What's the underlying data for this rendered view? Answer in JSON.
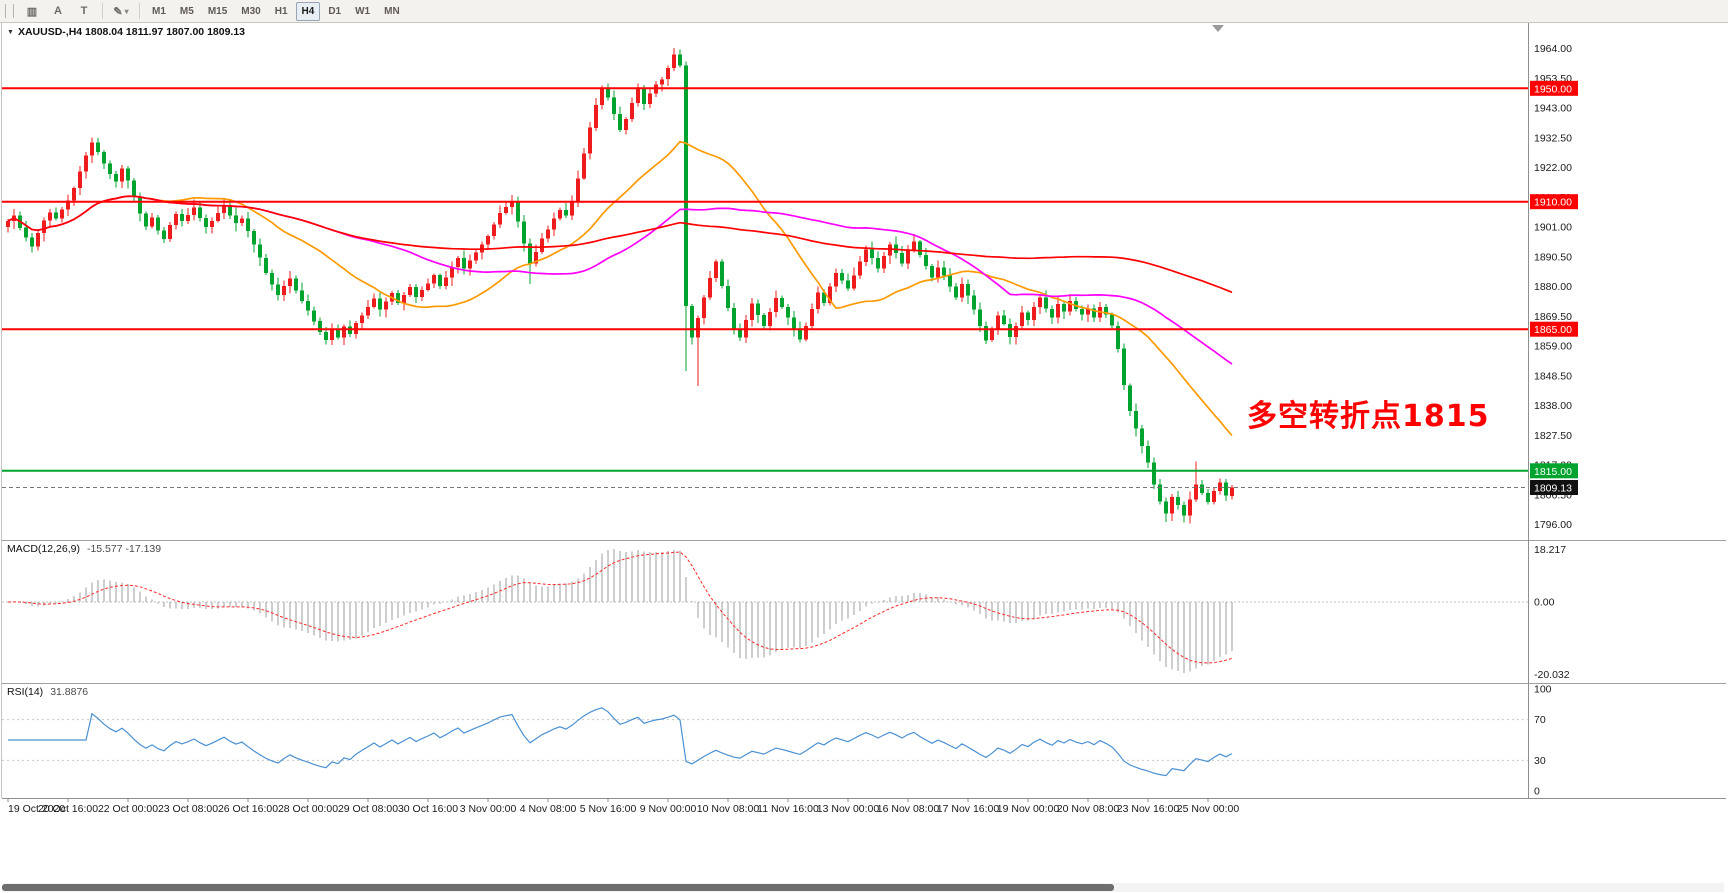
{
  "toolbar": {
    "left_buttons": [
      {
        "name": "chart-window-icon",
        "glyph": "▥"
      },
      {
        "name": "cursor-a-button",
        "glyph": "A"
      },
      {
        "name": "text-tool-button",
        "glyph": "T"
      }
    ],
    "objects_button": {
      "name": "draw-objects-button",
      "glyph": "✎",
      "caret": "▾"
    },
    "timeframes": [
      {
        "label": "M1",
        "active": false
      },
      {
        "label": "M5",
        "active": false
      },
      {
        "label": "M15",
        "active": false
      },
      {
        "label": "M30",
        "active": false
      },
      {
        "label": "H1",
        "active": false
      },
      {
        "label": "H4",
        "active": true
      },
      {
        "label": "D1",
        "active": false
      },
      {
        "label": "W1",
        "active": false
      },
      {
        "label": "MN",
        "active": false
      }
    ]
  },
  "chart": {
    "symbol_line": "XAUUSD-,H4  1808.04 1811.97 1807.00 1809.13",
    "menu_arrow": "▼",
    "annotation": {
      "text": "多空转折点1815",
      "color": "#ff0000"
    },
    "colors": {
      "up": "#ee1c1c",
      "down": "#00a32e",
      "hline_red": "#ff0000",
      "hline_green": "#00a32e",
      "rsi": "#4a90d2",
      "macd_hist": "#9c9c9c",
      "macd_signal": "#ff2a2a"
    },
    "view": {
      "price_min": 1792.0,
      "price_max": 1972.0
    },
    "price_axis": {
      "ticks": [
        1964.0,
        1953.5,
        1943.0,
        1932.5,
        1922.0,
        1911.5,
        1901.0,
        1890.5,
        1880.0,
        1869.5,
        1859.0,
        1848.5,
        1838.0,
        1827.5,
        1817.0,
        1806.5,
        1796.0
      ]
    },
    "hlines": [
      {
        "price": 1950.0,
        "label": "1950.00",
        "color": "#ff0000"
      },
      {
        "price": 1910.0,
        "label": "1910.00",
        "color": "#ff0000"
      },
      {
        "price": 1865.0,
        "label": "1865.00",
        "color": "#ff0000"
      },
      {
        "price": 1815.0,
        "label": "1815.00",
        "color": "#00a32e"
      }
    ],
    "current_price": {
      "value": 1809.13,
      "label": "1809.13"
    }
  },
  "chart_data": {
    "type": "candlestick",
    "symbol": "XAUUSD-",
    "timeframe": "H4",
    "first_open": 1901.0,
    "closes": [
      1903.2,
      1905.1,
      1900.8,
      1897.4,
      1894.2,
      1898.9,
      1903.3,
      1906.1,
      1904.0,
      1907.2,
      1910.4,
      1914.8,
      1920.6,
      1926.3,
      1930.9,
      1927.6,
      1923.4,
      1919.8,
      1917.2,
      1921.7,
      1917.5,
      1911.6,
      1905.8,
      1901.2,
      1904.4,
      1899.8,
      1896.9,
      1901.8,
      1905.7,
      1903.1,
      1905.3,
      1908.0,
      1904.2,
      1901.0,
      1903.2,
      1906.0,
      1908.8,
      1905.2,
      1902.4,
      1904.1,
      1899.6,
      1894.8,
      1890.2,
      1884.9,
      1880.8,
      1877.0,
      1880.2,
      1882.9,
      1878.6,
      1874.9,
      1871.6,
      1867.8,
      1864.0,
      1861.2,
      1864.9,
      1862.1,
      1866.0,
      1863.3,
      1867.1,
      1869.9,
      1872.8,
      1875.9,
      1871.9,
      1874.8,
      1877.8,
      1874.2,
      1877.0,
      1879.9,
      1876.3,
      1878.9,
      1881.2,
      1884.1,
      1880.3,
      1883.2,
      1886.9,
      1890.1,
      1886.4,
      1889.2,
      1892.0,
      1894.8,
      1897.8,
      1901.9,
      1906.0,
      1908.2,
      1910.1,
      1903.0,
      1895.2,
      1888.1,
      1892.3,
      1897.0,
      1900.2,
      1904.1,
      1907.0,
      1905.1,
      1910.3,
      1918.2,
      1927.0,
      1936.1,
      1944.2,
      1950.1,
      1946.8,
      1941.0,
      1935.2,
      1939.1,
      1944.9,
      1950.2,
      1944.4,
      1948.2,
      1951.3,
      1953.2,
      1957.1,
      1961.9,
      1958.0,
      1873.2,
      1862.1,
      1869.0,
      1876.2,
      1883.1,
      1888.9,
      1880.2,
      1872.4,
      1865.3,
      1862.1,
      1868.2,
      1874.1,
      1870.0,
      1866.2,
      1871.1,
      1876.0,
      1872.9,
      1869.2,
      1865.1,
      1861.3,
      1866.2,
      1872.1,
      1877.9,
      1874.2,
      1880.1,
      1884.9,
      1882.2,
      1879.3,
      1883.9,
      1888.8,
      1893.1,
      1890.2,
      1886.4,
      1890.9,
      1894.8,
      1891.9,
      1888.2,
      1892.8,
      1895.9,
      1891.2,
      1887.3,
      1883.2,
      1886.8,
      1883.9,
      1880.1,
      1876.2,
      1880.9,
      1876.8,
      1871.9,
      1866.2,
      1861.1,
      1864.9,
      1869.8,
      1866.9,
      1862.2,
      1866.1,
      1870.9,
      1868.2,
      1872.9,
      1876.1,
      1872.2,
      1869.1,
      1873.9,
      1871.2,
      1874.9,
      1872.1,
      1870.2,
      1872.3,
      1869.1,
      1872.9,
      1870.1,
      1866.2,
      1858.1,
      1845.2,
      1836.1,
      1829.9,
      1823.8,
      1817.9,
      1810.2,
      1804.1,
      1799.9,
      1805.8,
      1802.9,
      1799.2,
      1804.9,
      1810.1,
      1807.2,
      1803.9,
      1807.8,
      1810.9,
      1806.2,
      1809.13
    ],
    "wick_overrides": {
      "14": [
        1932.6,
        null
      ],
      "53": [
        null,
        1859.6
      ],
      "84": [
        1912.4,
        null
      ],
      "87": [
        null,
        1880.9
      ],
      "111": [
        1964.3,
        null
      ],
      "113": [
        1959.5,
        1850.2
      ],
      "115": [
        null,
        1845.0
      ],
      "193": [
        null,
        1797.0
      ],
      "196": [
        null,
        1796.8
      ],
      "198": [
        1818.3,
        null
      ]
    },
    "moving_averages": [
      {
        "name": "MA26",
        "period": 26,
        "color": "#ff9900"
      },
      {
        "name": "MA55",
        "period": 55,
        "color": "#ff00ff"
      },
      {
        "name": "MA120",
        "period": 120,
        "color": "#ff0000"
      }
    ],
    "time_labels": [
      "19 Oct 2020",
      "20 Oct 16:00",
      "22 Oct 00:00",
      "23 Oct 08:00",
      "26 Oct 16:00",
      "28 Oct 00:00",
      "29 Oct 08:00",
      "30 Oct 16:00",
      "3 Nov 00:00",
      "4 Nov 08:00",
      "5 Nov 16:00",
      "9 Nov 00:00",
      "10 Nov 08:00",
      "11 Nov 16:00",
      "13 Nov 00:00",
      "16 Nov 08:00",
      "17 Nov 16:00",
      "19 Nov 00:00",
      "20 Nov 08:00",
      "23 Nov 16:00",
      "25 Nov 00:00"
    ],
    "macd": {
      "label": "MACD(12,26,9)",
      "values_text": "-15.577 -17.139",
      "fast": 12,
      "slow": 26,
      "signal": 9,
      "axis_labels": [
        "18.217",
        "0.00",
        "-20.032"
      ]
    },
    "rsi": {
      "label": "RSI(14)",
      "value_text": "31.8876",
      "period": 14,
      "levels": [
        100,
        70,
        30,
        0
      ]
    }
  }
}
